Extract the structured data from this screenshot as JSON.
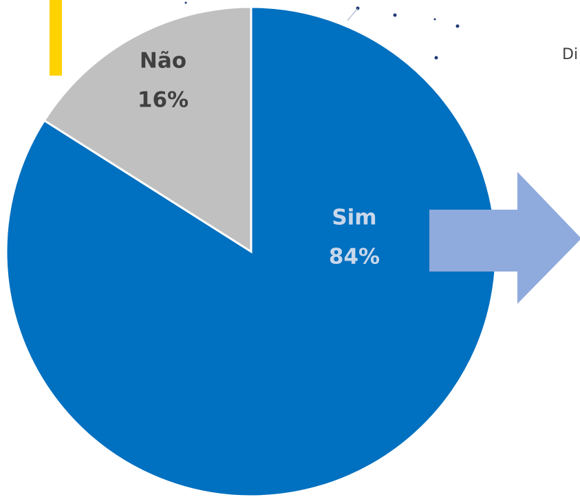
{
  "chart_data": {
    "type": "pie",
    "categories": [
      "Sim",
      "Não"
    ],
    "values": [
      84,
      16
    ],
    "value_labels": [
      "84%",
      "16%"
    ],
    "colors": [
      "#0070c0",
      "#c0c0c0"
    ],
    "label_colors": [
      "#c9d7ea",
      "#404040"
    ],
    "start": "top",
    "direction": "clockwise",
    "annotation": "Di"
  }
}
